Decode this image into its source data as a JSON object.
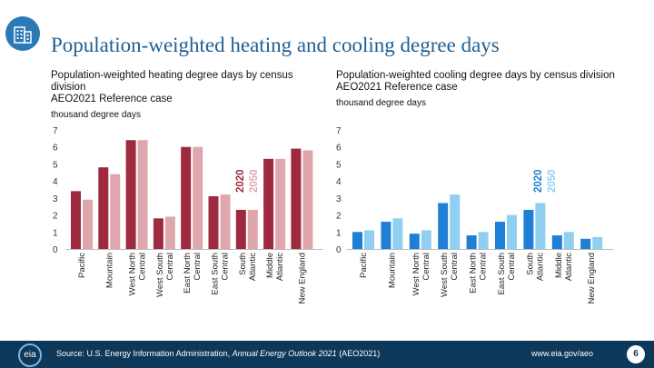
{
  "header": {
    "title": "Population-weighted heating and cooling degree days",
    "icon": "building-icon"
  },
  "chart_data": [
    {
      "type": "bar",
      "title": "Population-weighted heating degree days by census division",
      "subtitle": "AEO2021 Reference case",
      "units": "thousand degree days",
      "categories": [
        "Pacific",
        "Mountain",
        "West North Central",
        "West South Central",
        "East North Central",
        "East South Central",
        "South Atlantic",
        "Middle Atlantic",
        "New England"
      ],
      "series": [
        {
          "name": "2020",
          "values": [
            3.4,
            4.8,
            6.4,
            1.8,
            6.0,
            3.1,
            2.3,
            5.3,
            5.9
          ],
          "color": "#9e2a3f"
        },
        {
          "name": "2050",
          "values": [
            2.9,
            4.4,
            6.4,
            1.9,
            6.0,
            3.2,
            2.3,
            5.3,
            5.8
          ],
          "color": "#e0a6ad"
        }
      ],
      "ylim": [
        0,
        7
      ],
      "yticks": [
        "0",
        "1",
        "2",
        "3",
        "4",
        "5",
        "6",
        "7"
      ],
      "legend": "top-right (vertical)",
      "grid": false
    },
    {
      "type": "bar",
      "title": "Population-weighted cooling degree days by census division",
      "subtitle": "AEO2021 Reference case",
      "units": "thousand degree days",
      "categories": [
        "Pacific",
        "Mountain",
        "West North Central",
        "West South Central",
        "East North Central",
        "East South Central",
        "South Atlantic",
        "Middle Atlantic",
        "New England"
      ],
      "series": [
        {
          "name": "2020",
          "values": [
            1.0,
            1.6,
            0.9,
            2.7,
            0.8,
            1.6,
            2.3,
            0.8,
            0.6
          ],
          "color": "#1f7fd6"
        },
        {
          "name": "2050",
          "values": [
            1.1,
            1.8,
            1.1,
            3.2,
            1.0,
            2.0,
            2.7,
            1.0,
            0.7
          ],
          "color": "#8fd0f2"
        }
      ],
      "ylim": [
        0,
        7
      ],
      "yticks": [
        "0",
        "1",
        "2",
        "3",
        "4",
        "5",
        "6",
        "7"
      ],
      "legend": "top-right (vertical)",
      "grid": false
    }
  ],
  "footer": {
    "logo_text": "eia",
    "source_prefix": "Source: U.S. Energy Information Administration, ",
    "source_title": "Annual Energy Outlook 2021",
    "source_suffix": " (AEO2021)",
    "website": "www.eia.gov/aeo",
    "page_number": "6"
  }
}
